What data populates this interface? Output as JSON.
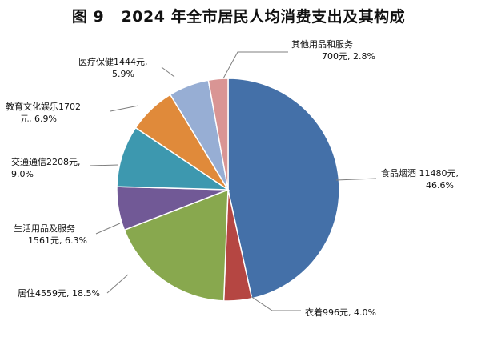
{
  "chart_data": {
    "type": "pie",
    "title": "图 9   2024 年全市居民人均消费支出及其构成",
    "slices": [
      {
        "name": "食品烟酒",
        "value": 11480,
        "percent": 46.6,
        "color": "#4470A8",
        "label_line1": "食品烟酒 11480元,",
        "label_line2": "46.6%"
      },
      {
        "name": "衣着",
        "value": 996,
        "percent": 4.0,
        "color": "#B54642",
        "label_line1": "衣着996元, 4.0%",
        "label_line2": ""
      },
      {
        "name": "居住",
        "value": 4559,
        "percent": 18.5,
        "color": "#88A84E",
        "label_line1": "居住4559元, 18.5%",
        "label_line2": ""
      },
      {
        "name": "生活用品及服务",
        "value": 1561,
        "percent": 6.3,
        "color": "#715996",
        "label_line1": "生活用品及服务",
        "label_line2": "1561元, 6.3%"
      },
      {
        "name": "交通通信",
        "value": 2208,
        "percent": 9.0,
        "color": "#3D98AF",
        "label_line1": "交通通信2208元,",
        "label_line2": "9.0%"
      },
      {
        "name": "教育文化娱乐",
        "value": 1702,
        "percent": 6.9,
        "color": "#E08A3A",
        "label_line1": "教育文化娱乐1702",
        "label_line2": "元, 6.9%"
      },
      {
        "name": "医疗保健",
        "value": 1444,
        "percent": 5.9,
        "color": "#97AED4",
        "label_line1": "医疗保健1444元,",
        "label_line2": "5.9%"
      },
      {
        "name": "其他用品和服务",
        "value": 700,
        "percent": 2.8,
        "color": "#D99594",
        "label_line1": "其他用品和服务",
        "label_line2": "700元, 2.8%"
      }
    ]
  }
}
